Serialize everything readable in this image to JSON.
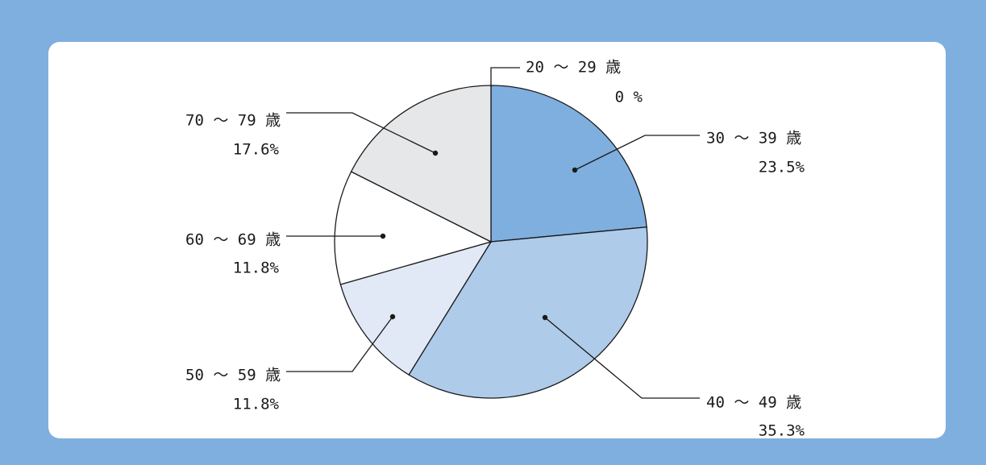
{
  "chart_data": {
    "type": "pie",
    "start_angle_deg": 0,
    "direction": "clockwise",
    "slices": [
      {
        "label": "20 ～ 29 歳",
        "value_label": "0 %",
        "value": 0,
        "color": "#7eafdf"
      },
      {
        "label": "30 ～ 39 歳",
        "value_label": "23.5%",
        "value": 23.5,
        "color": "#7eafdf"
      },
      {
        "label": "40 ～ 49 歳",
        "value_label": "35.3%",
        "value": 35.3,
        "color": "#aecbea"
      },
      {
        "label": "50 ～ 59 歳",
        "value_label": "11.8%",
        "value": 11.8,
        "color": "#e2e9f6"
      },
      {
        "label": "60 ～ 69 歳",
        "value_label": "11.8%",
        "value": 11.8,
        "color": "#ffffff"
      },
      {
        "label": "70 ～ 79 歳",
        "value_label": "17.6%",
        "value": 17.6,
        "color": "#e6e7e9"
      }
    ],
    "colors": {
      "background": "#7eafdf",
      "card": "#ffffff",
      "stroke": "#1a1a1a"
    }
  }
}
